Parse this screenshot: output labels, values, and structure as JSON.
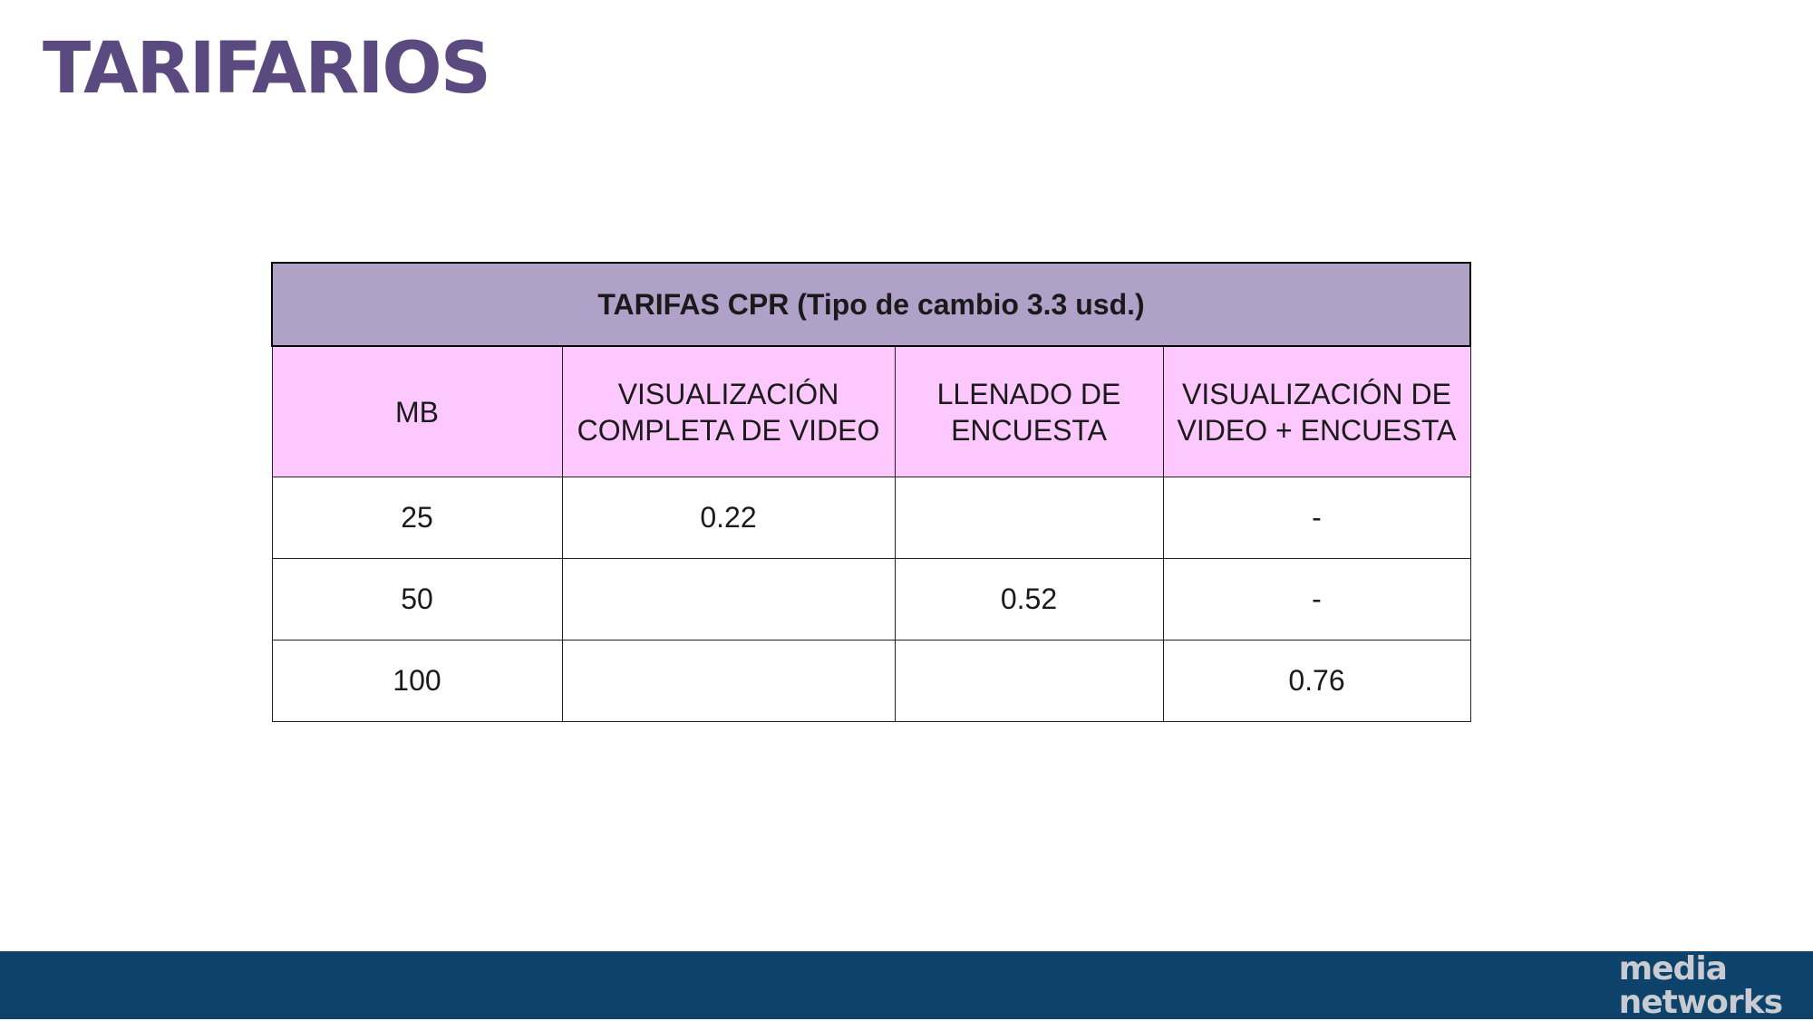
{
  "slide": {
    "title": "TARIFARIOS"
  },
  "table": {
    "caption": "TARIFAS CPR (Tipo de cambio 3.3 usd.)",
    "columns": [
      "MB",
      "VISUALIZACIÓN COMPLETA DE VIDEO",
      "LLENADO DE ENCUESTA",
      "VISUALIZACIÓN DE VIDEO + ENCUESTA"
    ],
    "rows": [
      [
        "25",
        "0.22",
        "",
        "-"
      ],
      [
        "50",
        "",
        "0.52",
        "-"
      ],
      [
        "100",
        "",
        "",
        "0.76"
      ]
    ]
  },
  "footer": {
    "logo_line1": "media",
    "logo_line2": "networks"
  },
  "colors": {
    "title": "#5b4a80",
    "caption_bg": "#b0a1c8",
    "header_bg": "#fcc8fd",
    "footer_bg": "#0d426a"
  }
}
